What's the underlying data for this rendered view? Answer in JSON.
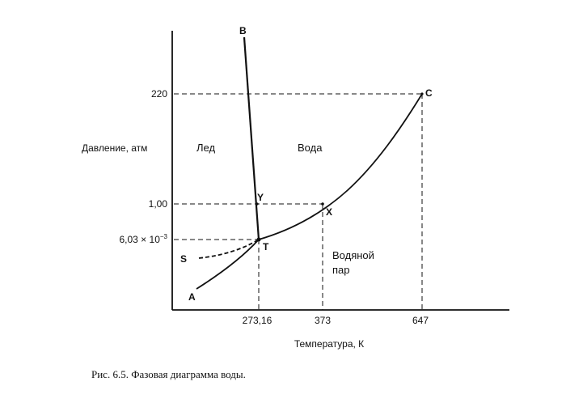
{
  "diagram": {
    "y_axis_title": "Давление, атм",
    "x_axis_title": "Температура, К",
    "y_ticks": {
      "p220": "220",
      "p100": "1,00",
      "triple_base": "6,03 × 10",
      "triple_exp": "−3"
    },
    "x_ticks": {
      "t27316": "273,16",
      "t373": "373",
      "t647": "647"
    },
    "regions": {
      "ice": "Лед",
      "water": "Вода",
      "vapor_line1": "Водяной",
      "vapor_line2": "пар"
    },
    "points": {
      "A": "A",
      "B": "B",
      "C": "C",
      "S": "S",
      "T": "T",
      "X": "X",
      "Y": "Y"
    }
  },
  "caption": "Рис. 6.5. Фазовая диаграмма воды."
}
